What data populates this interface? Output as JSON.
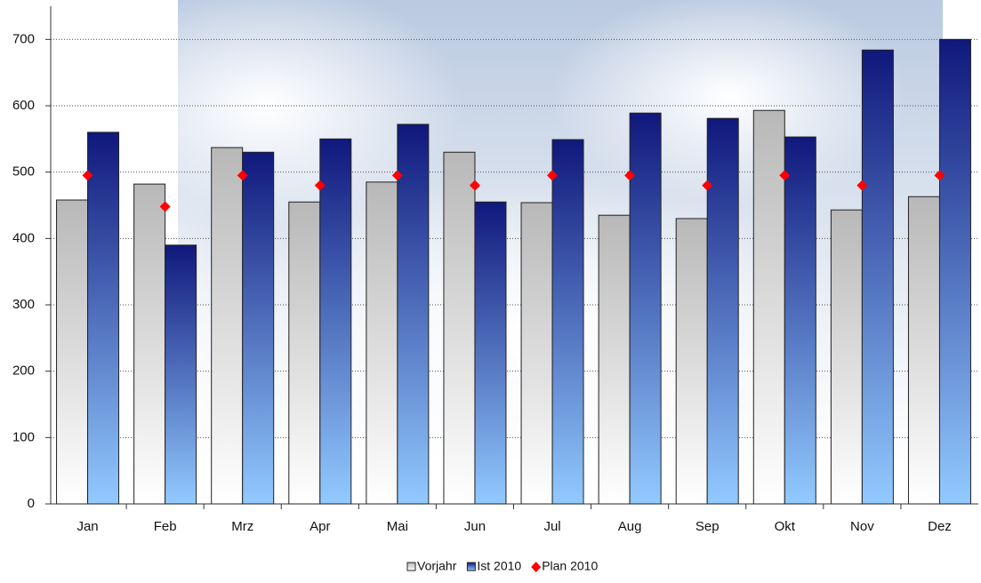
{
  "chart_data": {
    "type": "bar",
    "categories": [
      "Jan",
      "Feb",
      "Mrz",
      "Apr",
      "Mai",
      "Jun",
      "Jul",
      "Aug",
      "Sep",
      "Okt",
      "Nov",
      "Dez"
    ],
    "series": [
      {
        "name": "Vorjahr",
        "color": "#b8b8b8",
        "kind": "bar",
        "values": [
          458,
          482,
          537,
          455,
          485,
          530,
          454,
          435,
          430,
          593,
          443,
          463
        ]
      },
      {
        "name": "Ist 2010",
        "color": "#10187c",
        "kind": "bar",
        "values": [
          560,
          390,
          530,
          550,
          572,
          455,
          549,
          589,
          581,
          553,
          684,
          700
        ]
      },
      {
        "name": "Plan 2010",
        "color": "#ff0000",
        "kind": "marker",
        "values": [
          495,
          448,
          495,
          480,
          495,
          480,
          495,
          495,
          480,
          495,
          480,
          495
        ]
      }
    ],
    "ylim": [
      0,
      750
    ],
    "yticks": [
      0,
      100,
      200,
      300,
      400,
      500,
      600,
      700
    ],
    "grid": true,
    "legend": "bottom"
  }
}
